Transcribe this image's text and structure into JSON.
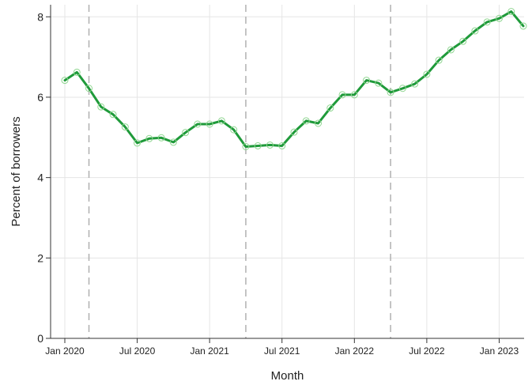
{
  "chart_data": {
    "type": "line",
    "xlabel": "Month",
    "ylabel": "Percent of borrowers",
    "ylim": [
      0,
      8.3
    ],
    "yticks": [
      0,
      2,
      4,
      6,
      8
    ],
    "xticks": [
      {
        "label": "Jan 2020",
        "date": "2020-01"
      },
      {
        "label": "Jul 2020",
        "date": "2020-07"
      },
      {
        "label": "Jan 2021",
        "date": "2021-01"
      },
      {
        "label": "Jul 2021",
        "date": "2021-07"
      },
      {
        "label": "Jan 2022",
        "date": "2022-01"
      },
      {
        "label": "Jul 2022",
        "date": "2022-07"
      },
      {
        "label": "Jan 2023",
        "date": "2023-01"
      }
    ],
    "vlines": [
      "2020-03",
      "2021-04",
      "2022-04"
    ],
    "grid": true,
    "legend": "none",
    "colors": {
      "line": "#1f9a3a",
      "marker": "#8fd690",
      "grid": "#e5e5e5",
      "vline": "#b0b0b0"
    },
    "series": [
      {
        "x": [
          "2020-01",
          "2020-02",
          "2020-03",
          "2020-04",
          "2020-05",
          "2020-06",
          "2020-07",
          "2020-08",
          "2020-09",
          "2020-10",
          "2020-11",
          "2020-12",
          "2021-01",
          "2021-02",
          "2021-03",
          "2021-04",
          "2021-05",
          "2021-06",
          "2021-07",
          "2021-08",
          "2021-09",
          "2021-10",
          "2021-11",
          "2021-12",
          "2022-01",
          "2022-02",
          "2022-03",
          "2022-04",
          "2022-05",
          "2022-06",
          "2022-07",
          "2022-08",
          "2022-09",
          "2022-10",
          "2022-11",
          "2022-12",
          "2023-01",
          "2023-02",
          "2023-03"
        ],
        "values": [
          6.42,
          6.62,
          6.22,
          5.76,
          5.57,
          5.26,
          4.86,
          4.97,
          4.99,
          4.88,
          5.12,
          5.33,
          5.33,
          5.41,
          5.19,
          4.77,
          4.79,
          4.81,
          4.79,
          5.13,
          5.41,
          5.35,
          5.73,
          6.06,
          6.06,
          6.42,
          6.35,
          6.12,
          6.22,
          6.33,
          6.57,
          6.92,
          7.18,
          7.39,
          7.65,
          7.87,
          7.96,
          8.13,
          7.77
        ]
      }
    ]
  }
}
